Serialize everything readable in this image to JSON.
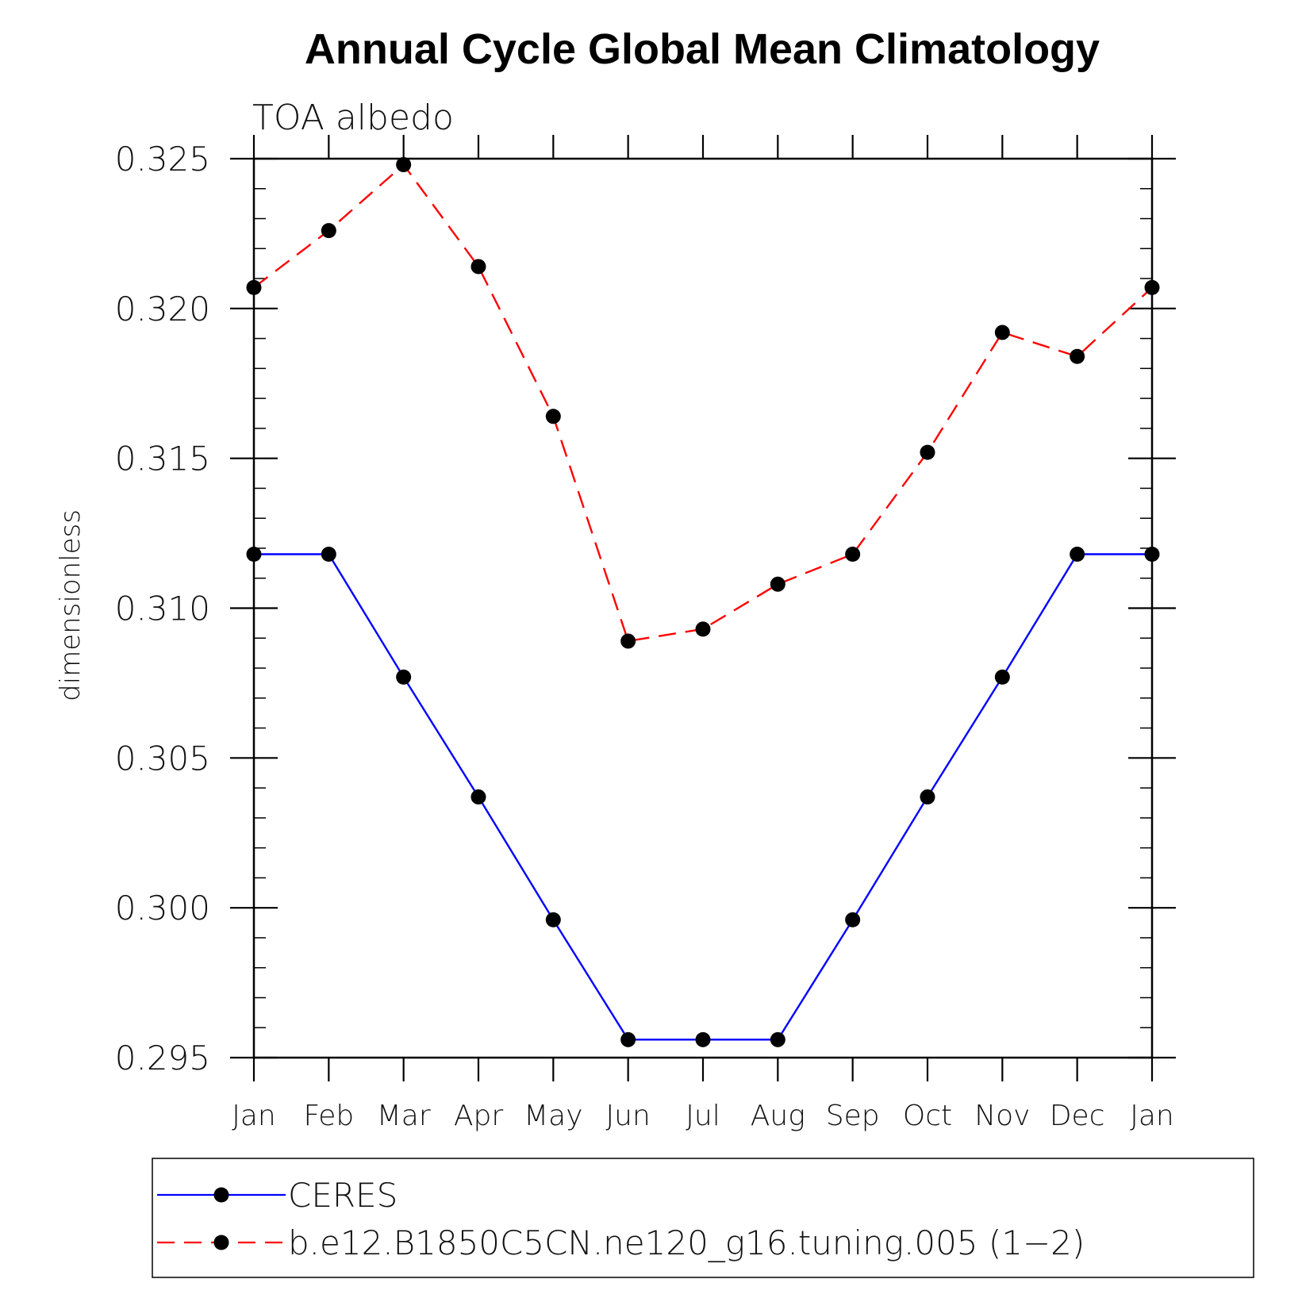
{
  "chart_data": {
    "type": "line",
    "title": "Annual Cycle Global Mean Climatology",
    "subtitle": "TOA albedo",
    "xlabel": "",
    "ylabel": "dimensionless",
    "categories": [
      "Jan",
      "Feb",
      "Mar",
      "Apr",
      "May",
      "Jun",
      "Jul",
      "Aug",
      "Sep",
      "Oct",
      "Nov",
      "Dec",
      "Jan"
    ],
    "ylim": [
      0.295,
      0.325
    ],
    "yticks": [
      "0.295",
      "0.300",
      "0.305",
      "0.310",
      "0.315",
      "0.320",
      "0.325"
    ],
    "series": [
      {
        "name": "CERES",
        "color": "#0000ff",
        "style": "solid",
        "values": [
          0.3118,
          0.3118,
          0.3077,
          0.3037,
          0.2996,
          0.2956,
          0.2956,
          0.2956,
          0.2996,
          0.3037,
          0.3077,
          0.3118,
          0.3118
        ]
      },
      {
        "name": "b.e12.B1850C5CN.ne120_g16.tuning.005 (1−2)",
        "color": "#ff0000",
        "style": "dashed",
        "values": [
          0.3207,
          0.3226,
          0.3248,
          0.3214,
          0.3164,
          0.3089,
          0.3093,
          0.3108,
          0.3118,
          0.3152,
          0.3192,
          0.3184,
          0.3207
        ]
      }
    ],
    "marker": "filled-circle",
    "marker_color": "#000000",
    "legend_position": "bottom"
  }
}
